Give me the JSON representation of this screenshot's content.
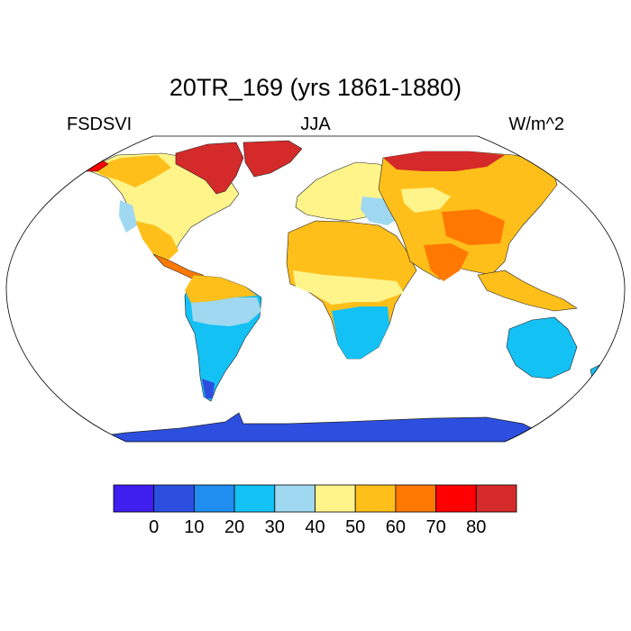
{
  "title": "20TR_169 (yrs 1861-1880)",
  "subtitle_left": "FSDSVI",
  "subtitle_center": "JJA",
  "subtitle_right": "W/m^2",
  "colorbar": {
    "colors": [
      "#3f1ef0",
      "#2c4fe0",
      "#1f8ef0",
      "#14c1f5",
      "#9fd8f0",
      "#fff48a",
      "#ffbf1a",
      "#ff7800",
      "#ff0000",
      "#d42a2a"
    ],
    "labels": [
      "0",
      "10",
      "20",
      "30",
      "40",
      "50",
      "60",
      "70",
      "80"
    ]
  }
}
